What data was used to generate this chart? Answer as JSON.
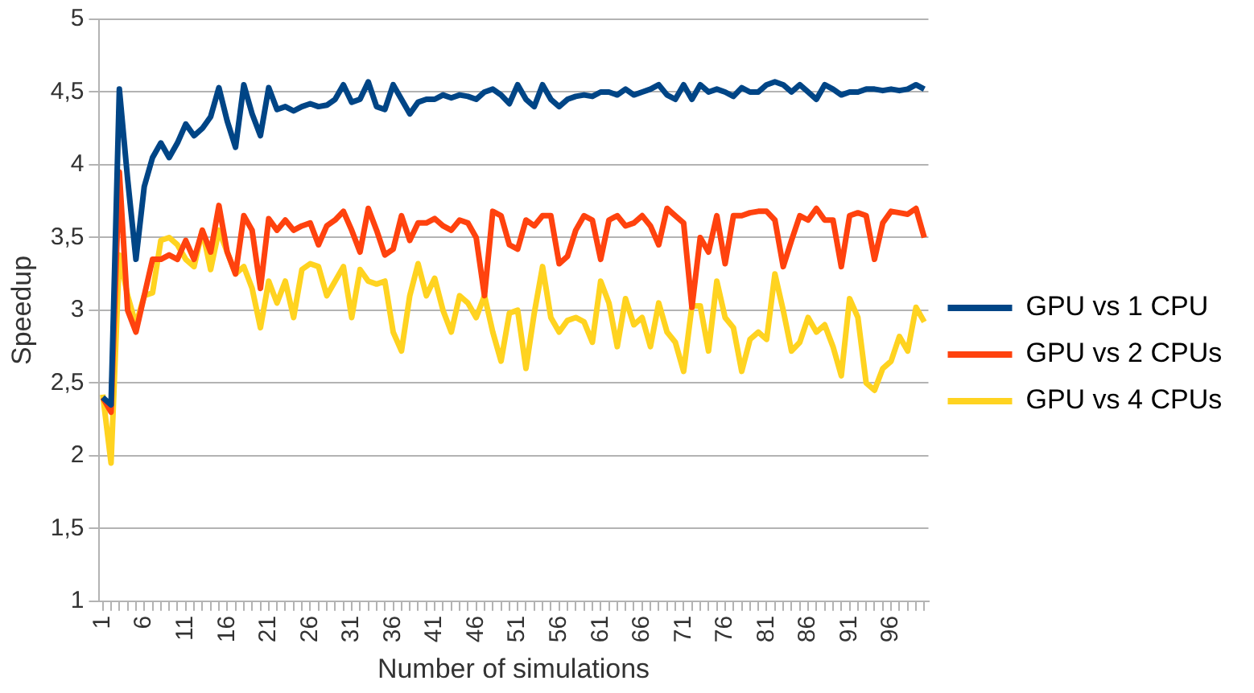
{
  "chart_data": {
    "type": "line",
    "xlabel": "Number of simulations",
    "ylabel": "Speedup",
    "categories": [
      "1",
      null,
      null,
      null,
      null,
      "6",
      null,
      null,
      null,
      null,
      "11",
      null,
      null,
      null,
      null,
      "16",
      null,
      null,
      null,
      null,
      "21",
      null,
      null,
      null,
      null,
      "26",
      null,
      null,
      null,
      null,
      "31",
      null,
      null,
      null,
      null,
      "36",
      null,
      null,
      null,
      null,
      "41",
      null,
      null,
      null,
      null,
      "46",
      null,
      null,
      null,
      null,
      "51",
      null,
      null,
      null,
      null,
      "56",
      null,
      null,
      null,
      null,
      "61",
      null,
      null,
      null,
      null,
      "66",
      null,
      null,
      null,
      null,
      "71",
      null,
      null,
      null,
      null,
      "76",
      null,
      null,
      null,
      null,
      "81",
      null,
      null,
      null,
      null,
      "86",
      null,
      null,
      null,
      null,
      "91",
      null,
      null,
      null,
      null,
      "96",
      null,
      null,
      null,
      null
    ],
    "ylim": [
      1,
      5
    ],
    "yticks": [
      1,
      {
        "value": 1.5,
        "label": "1,5"
      },
      2,
      {
        "value": 2.5,
        "label": "2,5"
      },
      3,
      {
        "value": 3.5,
        "label": "3,5"
      },
      4,
      {
        "value": 4.5,
        "label": "4,5"
      },
      5
    ],
    "grid": "y",
    "legend": "right",
    "marker": "none",
    "line_style": "solid",
    "series": [
      {
        "name": "GPU vs 1 CPU",
        "color": "#004586",
        "values": [
          2.4,
          2.35,
          4.52,
          3.9,
          3.35,
          3.85,
          4.05,
          4.15,
          4.05,
          4.15,
          4.28,
          4.2,
          4.25,
          4.33,
          4.53,
          4.3,
          4.12,
          4.55,
          4.35,
          4.2,
          4.53,
          4.38,
          4.4,
          4.37,
          4.4,
          4.42,
          4.4,
          4.41,
          4.45,
          4.55,
          4.43,
          4.45,
          4.57,
          4.4,
          4.38,
          4.55,
          4.45,
          4.35,
          4.43,
          4.45,
          4.45,
          4.48,
          4.46,
          4.48,
          4.47,
          4.45,
          4.5,
          4.52,
          4.48,
          4.42,
          4.55,
          4.45,
          4.4,
          4.55,
          4.45,
          4.4,
          4.45,
          4.47,
          4.48,
          4.47,
          4.5,
          4.5,
          4.48,
          4.52,
          4.48,
          4.5,
          4.52,
          4.55,
          4.48,
          4.45,
          4.55,
          4.45,
          4.55,
          4.5,
          4.52,
          4.5,
          4.47,
          4.53,
          4.5,
          4.5,
          4.55,
          4.57,
          4.55,
          4.5,
          4.55,
          4.5,
          4.45,
          4.55,
          4.52,
          4.48,
          4.5,
          4.5,
          4.52,
          4.52,
          4.51,
          4.52,
          4.51,
          4.52,
          4.55,
          4.52
        ]
      },
      {
        "name": "GPU vs 2 CPUs",
        "color": "#ff420e",
        "values": [
          2.4,
          2.3,
          3.95,
          3.0,
          2.85,
          3.1,
          3.35,
          3.35,
          3.38,
          3.35,
          3.48,
          3.35,
          3.55,
          3.4,
          3.72,
          3.4,
          3.25,
          3.65,
          3.55,
          3.15,
          3.63,
          3.55,
          3.62,
          3.55,
          3.58,
          3.6,
          3.45,
          3.58,
          3.62,
          3.68,
          3.55,
          3.4,
          3.7,
          3.55,
          3.38,
          3.42,
          3.65,
          3.48,
          3.6,
          3.6,
          3.63,
          3.58,
          3.55,
          3.62,
          3.6,
          3.5,
          3.1,
          3.68,
          3.65,
          3.45,
          3.42,
          3.62,
          3.58,
          3.65,
          3.65,
          3.32,
          3.37,
          3.55,
          3.65,
          3.62,
          3.35,
          3.62,
          3.65,
          3.58,
          3.6,
          3.65,
          3.58,
          3.45,
          3.7,
          3.65,
          3.6,
          3.02,
          3.5,
          3.4,
          3.65,
          3.32,
          3.65,
          3.65,
          3.67,
          3.68,
          3.68,
          3.62,
          3.3,
          3.48,
          3.65,
          3.62,
          3.7,
          3.62,
          3.62,
          3.3,
          3.65,
          3.67,
          3.65,
          3.35,
          3.6,
          3.68,
          3.67,
          3.66,
          3.7,
          3.5
        ]
      },
      {
        "name": "GPU vs 4 CPUs",
        "color": "#ffd320",
        "values": [
          2.42,
          1.95,
          3.38,
          3.1,
          2.9,
          3.1,
          3.12,
          3.48,
          3.5,
          3.45,
          3.35,
          3.3,
          3.55,
          3.28,
          3.55,
          3.4,
          3.25,
          3.3,
          3.15,
          2.88,
          3.2,
          3.05,
          3.2,
          2.95,
          3.28,
          3.32,
          3.3,
          3.1,
          3.2,
          3.3,
          2.95,
          3.28,
          3.2,
          3.18,
          3.2,
          2.85,
          2.72,
          3.1,
          3.32,
          3.1,
          3.22,
          3.0,
          2.85,
          3.1,
          3.05,
          2.95,
          3.1,
          2.85,
          2.65,
          2.98,
          3.0,
          2.6,
          2.98,
          3.3,
          2.95,
          2.85,
          2.93,
          2.95,
          2.92,
          2.78,
          3.2,
          3.05,
          2.75,
          3.08,
          2.9,
          2.95,
          2.75,
          3.05,
          2.85,
          2.78,
          2.58,
          3.03,
          3.03,
          2.72,
          3.2,
          2.95,
          2.88,
          2.58,
          2.8,
          2.85,
          2.8,
          3.25,
          3.0,
          2.72,
          2.78,
          2.95,
          2.85,
          2.9,
          2.75,
          2.55,
          3.08,
          2.95,
          2.5,
          2.45,
          2.6,
          2.65,
          2.82,
          2.72,
          3.02,
          2.92
        ]
      }
    ]
  }
}
